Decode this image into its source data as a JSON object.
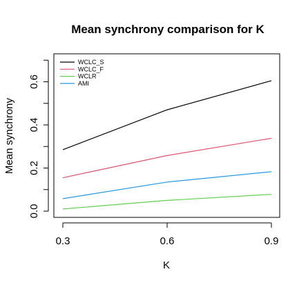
{
  "chart_data": {
    "type": "line",
    "title": "Mean synchrony comparison for K",
    "xlabel": "K",
    "ylabel": "Mean synchrony",
    "x": [
      0.3,
      0.6,
      0.9
    ],
    "x_ticks": [
      "0.3",
      "0.6",
      "0.9"
    ],
    "y_ticks": [
      "0.0",
      "0.2",
      "0.4",
      "0.6"
    ],
    "xlim": [
      0.3,
      0.9
    ],
    "ylim": [
      0.0,
      0.7
    ],
    "grid": false,
    "legend_position": "top-left",
    "series": [
      {
        "name": "WCLC_S",
        "color": "#000000",
        "values": [
          0.285,
          0.47,
          0.605
        ]
      },
      {
        "name": "WCLC_F",
        "color": "#df536b",
        "values": [
          0.155,
          0.258,
          0.338
        ]
      },
      {
        "name": "WCLR",
        "color": "#61d04f",
        "values": [
          0.01,
          0.05,
          0.078
        ]
      },
      {
        "name": "AMI",
        "color": "#2297e6",
        "values": [
          0.058,
          0.135,
          0.183
        ]
      }
    ]
  }
}
